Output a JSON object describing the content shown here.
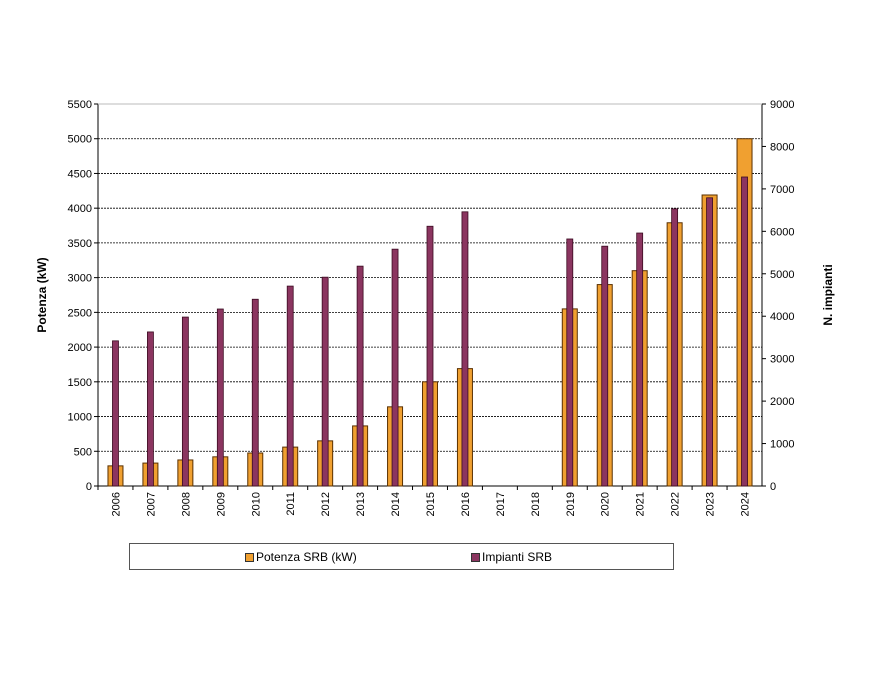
{
  "chart_data": {
    "type": "bar",
    "categories": [
      "2006",
      "2007",
      "2008",
      "2009",
      "2010",
      "2011",
      "2012",
      "2013",
      "2014",
      "2015",
      "2016",
      "2017",
      "2018",
      "2019",
      "2020",
      "2021",
      "2022",
      "2023",
      "2024"
    ],
    "series": [
      {
        "name": "Potenza SRB (kW)",
        "axis": "left",
        "color": "#F0A030",
        "values": [
          290,
          330,
          375,
          420,
          475,
          560,
          650,
          865,
          1140,
          1500,
          1690,
          null,
          null,
          2550,
          2900,
          3100,
          3790,
          4190,
          5000
        ]
      },
      {
        "name": "Impianti SRB",
        "axis": "right",
        "color": "#8B3560",
        "values": [
          3420,
          3630,
          3980,
          4170,
          4400,
          4710,
          4920,
          5180,
          5580,
          6120,
          6460,
          null,
          null,
          5820,
          5650,
          5960,
          6530,
          6790,
          7280
        ]
      }
    ],
    "ylabel": "Potenza (kW)",
    "y2label": "N. impianti",
    "ylim": [
      0,
      5500
    ],
    "y2lim": [
      0,
      9000
    ],
    "yticks": [
      0,
      500,
      1000,
      1500,
      2000,
      2500,
      3000,
      3500,
      4000,
      4500,
      5000,
      5500
    ],
    "y2ticks": [
      0,
      1000,
      2000,
      3000,
      4000,
      5000,
      6000,
      7000,
      8000,
      9000
    ],
    "grid": true,
    "legend_position": "bottom"
  }
}
